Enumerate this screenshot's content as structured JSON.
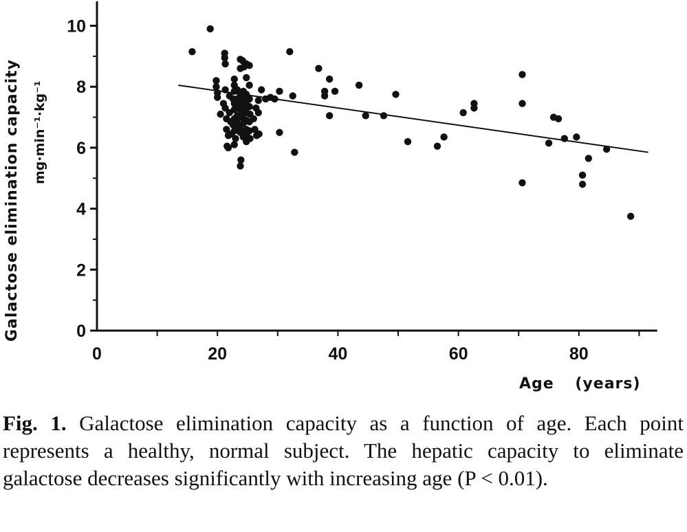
{
  "chart_data": {
    "type": "scatter",
    "xlabel": "Age",
    "xlabel_units": "(years)",
    "ylabel": "Galactose elimination capacity",
    "ylabel_units": "mg·min⁻¹·kg⁻¹",
    "xlim": [
      0,
      93
    ],
    "ylim": [
      0,
      10.8
    ],
    "xticks": [
      0,
      20,
      40,
      60,
      80
    ],
    "yticks": [
      0,
      2,
      4,
      6,
      8,
      10
    ],
    "grid": false,
    "regression_line": {
      "x": [
        13.5,
        91.5
      ],
      "y": [
        8.05,
        5.85
      ]
    },
    "points": [
      [
        15.8,
        9.15
      ],
      [
        18.8,
        9.9
      ],
      [
        19.8,
        8.2
      ],
      [
        19.8,
        8.0
      ],
      [
        20.0,
        7.8
      ],
      [
        20.0,
        7.65
      ],
      [
        20.5,
        7.1
      ],
      [
        21.2,
        9.1
      ],
      [
        21.2,
        8.95
      ],
      [
        21.3,
        8.75
      ],
      [
        21.3,
        7.9
      ],
      [
        21.0,
        7.45
      ],
      [
        21.3,
        7.3
      ],
      [
        21.5,
        6.95
      ],
      [
        21.5,
        6.6
      ],
      [
        21.8,
        6.4
      ],
      [
        21.6,
        6.05
      ],
      [
        21.8,
        6.0
      ],
      [
        22.0,
        7.7
      ],
      [
        22.0,
        7.15
      ],
      [
        22.2,
        6.85
      ],
      [
        22.3,
        6.45
      ],
      [
        22.8,
        8.25
      ],
      [
        22.8,
        8.05
      ],
      [
        22.8,
        7.85
      ],
      [
        22.6,
        7.6
      ],
      [
        22.8,
        7.45
      ],
      [
        22.8,
        7.25
      ],
      [
        22.8,
        6.95
      ],
      [
        22.6,
        6.75
      ],
      [
        22.8,
        6.55
      ],
      [
        23.0,
        6.3
      ],
      [
        22.8,
        6.1
      ],
      [
        23.3,
        7.9
      ],
      [
        23.3,
        7.6
      ],
      [
        23.4,
        7.35
      ],
      [
        23.3,
        7.05
      ],
      [
        23.3,
        6.8
      ],
      [
        23.4,
        6.6
      ],
      [
        23.8,
        8.9
      ],
      [
        23.8,
        8.6
      ],
      [
        23.8,
        7.75
      ],
      [
        23.8,
        7.5
      ],
      [
        23.8,
        7.25
      ],
      [
        23.8,
        7.0
      ],
      [
        23.8,
        6.75
      ],
      [
        23.8,
        6.5
      ],
      [
        23.9,
        5.6
      ],
      [
        23.8,
        5.4
      ],
      [
        24.2,
        8.85
      ],
      [
        24.4,
        8.65
      ],
      [
        24.3,
        7.85
      ],
      [
        24.2,
        7.6
      ],
      [
        24.3,
        7.3
      ],
      [
        24.2,
        7.05
      ],
      [
        24.3,
        6.8
      ],
      [
        24.2,
        6.55
      ],
      [
        24.3,
        6.35
      ],
      [
        24.8,
        8.75
      ],
      [
        24.8,
        8.3
      ],
      [
        24.8,
        7.75
      ],
      [
        24.8,
        7.45
      ],
      [
        24.8,
        7.15
      ],
      [
        24.8,
        6.9
      ],
      [
        24.8,
        6.6
      ],
      [
        24.8,
        6.4
      ],
      [
        24.8,
        6.2
      ],
      [
        25.3,
        8.7
      ],
      [
        25.3,
        8.05
      ],
      [
        25.3,
        7.6
      ],
      [
        25.3,
        7.35
      ],
      [
        25.4,
        7.1
      ],
      [
        25.3,
        6.85
      ],
      [
        25.3,
        6.55
      ],
      [
        25.4,
        6.3
      ],
      [
        26.0,
        6.95
      ],
      [
        26.2,
        6.6
      ],
      [
        26.4,
        7.3
      ],
      [
        26.5,
        6.4
      ],
      [
        26.8,
        7.55
      ],
      [
        26.8,
        7.15
      ],
      [
        26.9,
        6.45
      ],
      [
        27.3,
        7.9
      ],
      [
        28.0,
        7.6
      ],
      [
        28.8,
        7.65
      ],
      [
        29.5,
        7.6
      ],
      [
        30.3,
        7.85
      ],
      [
        30.3,
        6.5
      ],
      [
        32.0,
        9.15
      ],
      [
        32.5,
        7.7
      ],
      [
        32.8,
        5.85
      ],
      [
        36.8,
        8.6
      ],
      [
        37.8,
        7.85
      ],
      [
        37.8,
        7.7
      ],
      [
        38.6,
        8.25
      ],
      [
        38.6,
        7.05
      ],
      [
        39.5,
        7.85
      ],
      [
        43.5,
        8.05
      ],
      [
        44.6,
        7.05
      ],
      [
        47.6,
        7.05
      ],
      [
        49.6,
        7.75
      ],
      [
        51.6,
        6.2
      ],
      [
        56.5,
        6.05
      ],
      [
        57.6,
        6.35
      ],
      [
        60.8,
        7.15
      ],
      [
        62.6,
        7.45
      ],
      [
        62.6,
        7.3
      ],
      [
        70.6,
        8.4
      ],
      [
        70.6,
        7.45
      ],
      [
        70.6,
        4.85
      ],
      [
        75.0,
        6.15
      ],
      [
        75.8,
        7.0
      ],
      [
        76.6,
        6.95
      ],
      [
        77.6,
        6.3
      ],
      [
        79.6,
        6.35
      ],
      [
        80.6,
        5.1
      ],
      [
        80.6,
        4.8
      ],
      [
        81.6,
        5.65
      ],
      [
        84.6,
        5.95
      ],
      [
        88.6,
        3.75
      ]
    ]
  },
  "caption": {
    "lead": "Fig. 1.",
    "text": "Galactose elimination capacity as a function of age. Each point represents a healthy, normal subject. The hepatic capacity to eliminate galactose decreases significantly with increasing age (P < 0.01)."
  }
}
